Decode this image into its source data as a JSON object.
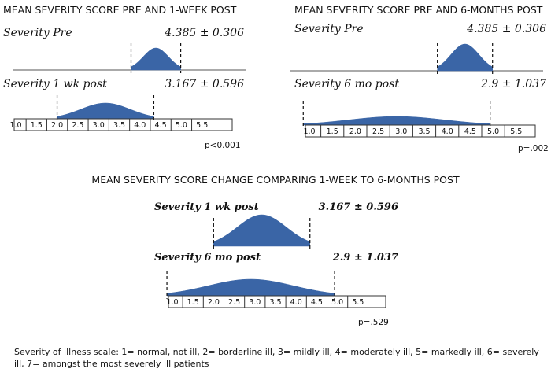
{
  "chart_data": [
    {
      "type": "distribution",
      "title": "MEAN SEVERITY SCORE PRE AND 1-WEEK POST",
      "series": [
        {
          "name": "Severity  Pre",
          "mean": 4.385,
          "sd": 0.306,
          "stat": "4.385 ± 0.306"
        },
        {
          "name": "Severity 1 wk post",
          "mean": 3.167,
          "sd": 0.596,
          "stat": "3.167 ± 0.596"
        }
      ],
      "xticks": [
        "1.0",
        "1.5",
        "2.0",
        "2.5",
        "3.0",
        "3.5",
        "4.0",
        "4.5",
        "5.0",
        "5.5"
      ],
      "xlim": [
        1.0,
        5.5
      ],
      "p_value": "p<0.001"
    },
    {
      "type": "distribution",
      "title": "MEAN SEVERITY SCORE PRE AND 6-MONTHS POST",
      "series": [
        {
          "name": "Severity  Pre",
          "mean": 4.385,
          "sd": 0.306,
          "stat": "4.385 ± 0.306"
        },
        {
          "name": "Severity 6 mo post",
          "mean": 2.9,
          "sd": 1.037,
          "stat": "2.9 ± 1.037"
        }
      ],
      "xticks": [
        "1.0",
        "1.5",
        "2.0",
        "2.5",
        "3.0",
        "3.5",
        "4.0",
        "4.5",
        "5.0",
        "5.5"
      ],
      "xlim": [
        1.0,
        5.5
      ],
      "p_value": "p=.002"
    },
    {
      "type": "distribution",
      "title": "MEAN SEVERITY SCORE CHANGE COMPARING 1-WEEK TO 6-MONTHS POST",
      "series": [
        {
          "name": "Severity 1 wk post",
          "mean": 3.167,
          "sd": 0.596,
          "stat": "3.167 ± 0.596"
        },
        {
          "name": "Severity 6 mo post",
          "mean": 2.9,
          "sd": 1.037,
          "stat": "2.9 ± 1.037"
        }
      ],
      "xticks": [
        "1.0",
        "1.5",
        "2.0",
        "2.5",
        "3.0",
        "3.5",
        "4.0",
        "4.5",
        "5.0",
        "5.5"
      ],
      "xlim": [
        1.0,
        5.5
      ],
      "p_value": "p=.529"
    }
  ],
  "colors": {
    "fill": "#3a65a6",
    "axis": "#333333"
  },
  "caption": "Severity of illness scale: 1= normal, not ill, 2= borderline ill, 3= mildly ill, 4= moderately ill, 5= markedly ill, 6= severely ill, 7= amongst the most severely ill patients"
}
